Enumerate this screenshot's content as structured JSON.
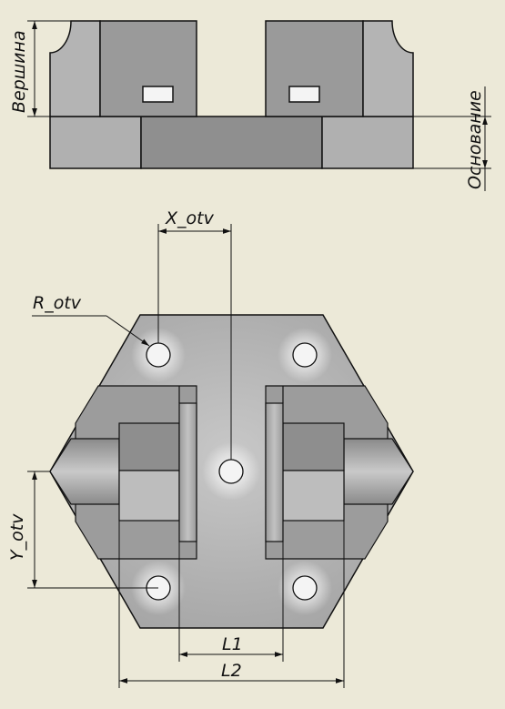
{
  "labels": {
    "vershina": "Вершина",
    "osnovanie": "Основание",
    "x_otv": "X_otv",
    "r_otv": "R_otv",
    "y_otv": "Y_otv",
    "l1": "L1",
    "l2": "L2"
  },
  "colors": {
    "background": "#ece9d8",
    "line": "#111111",
    "body_light": "#b4b4b4",
    "body_mid": "#a3a3a3",
    "body_dark": "#8c8c8c",
    "hole_fill": "#f2f2f2"
  }
}
